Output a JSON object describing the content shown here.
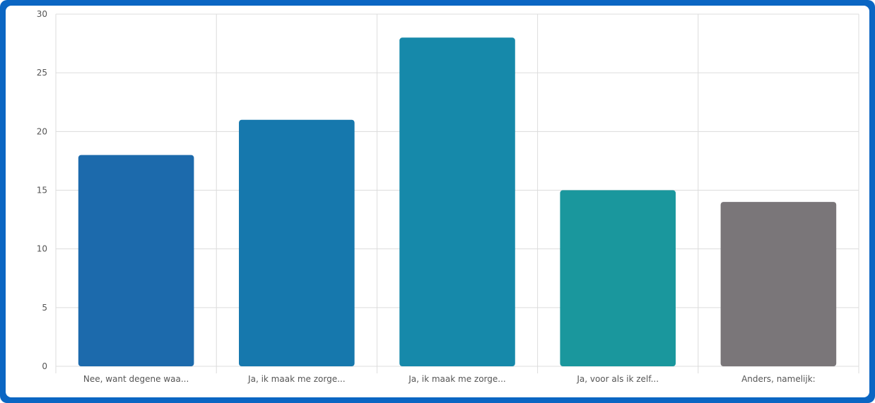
{
  "chart_data": {
    "type": "bar",
    "title": "",
    "xlabel": "",
    "ylabel": "",
    "categories": [
      "Nee, want degene waa...",
      "Ja, ik maak me zorge...",
      "Ja, ik maak me zorge...",
      "Ja, voor als ik zelf...",
      "Anders, namelijk:"
    ],
    "values": [
      18,
      21,
      28,
      15,
      14
    ],
    "bar_colors": [
      "#1c6aac",
      "#1678ad",
      "#1689aa",
      "#1a979d",
      "#7a7679"
    ],
    "ylim": [
      0,
      30
    ],
    "yticks": [
      0,
      5,
      10,
      15,
      20,
      25,
      30
    ],
    "grid": true,
    "legend": "none"
  },
  "colors": {
    "frame": "#0b66c3",
    "grid": "#dcdcdc",
    "tick_text": "#555555"
  }
}
